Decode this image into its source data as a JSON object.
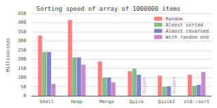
{
  "chart_data": {
    "type": "bar",
    "title": "Sorting speed of array of 1000000 items",
    "ylabel": "Milliseconds",
    "categories": [
      "Shell",
      "Heap",
      "Merge",
      "Quick",
      "Quick2",
      "std::sort"
    ],
    "series": [
      {
        "name": "Random",
        "color": "#ff8080",
        "values": [
          330,
          415,
          188,
          135,
          110,
          115
        ]
      },
      {
        "name": "Almost sorted",
        "color": "#80c080",
        "values": [
          240,
          210,
          100,
          148,
          50,
          55
        ]
      },
      {
        "name": "Almost reversed",
        "color": "#8080cc",
        "values": [
          240,
          210,
          100,
          115,
          52,
          60
        ]
      },
      {
        "name": "With random end",
        "color": "#cc88cc",
        "values": [
          65,
          170,
          73,
          null,
          null,
          130
        ]
      }
    ],
    "annotations": [
      {
        "text": "Skipped",
        "category": "Quick",
        "series": "With random end",
        "color": "#cc88cc"
      },
      {
        "text": "Skipped",
        "category": "Quick2",
        "series": "With random end",
        "color": "#cc88cc"
      }
    ],
    "ylim": [
      0,
      450
    ],
    "yticks": [
      0,
      50,
      100,
      150,
      200,
      250,
      300,
      350,
      400,
      450
    ],
    "grid": true,
    "legend": "upper right"
  }
}
